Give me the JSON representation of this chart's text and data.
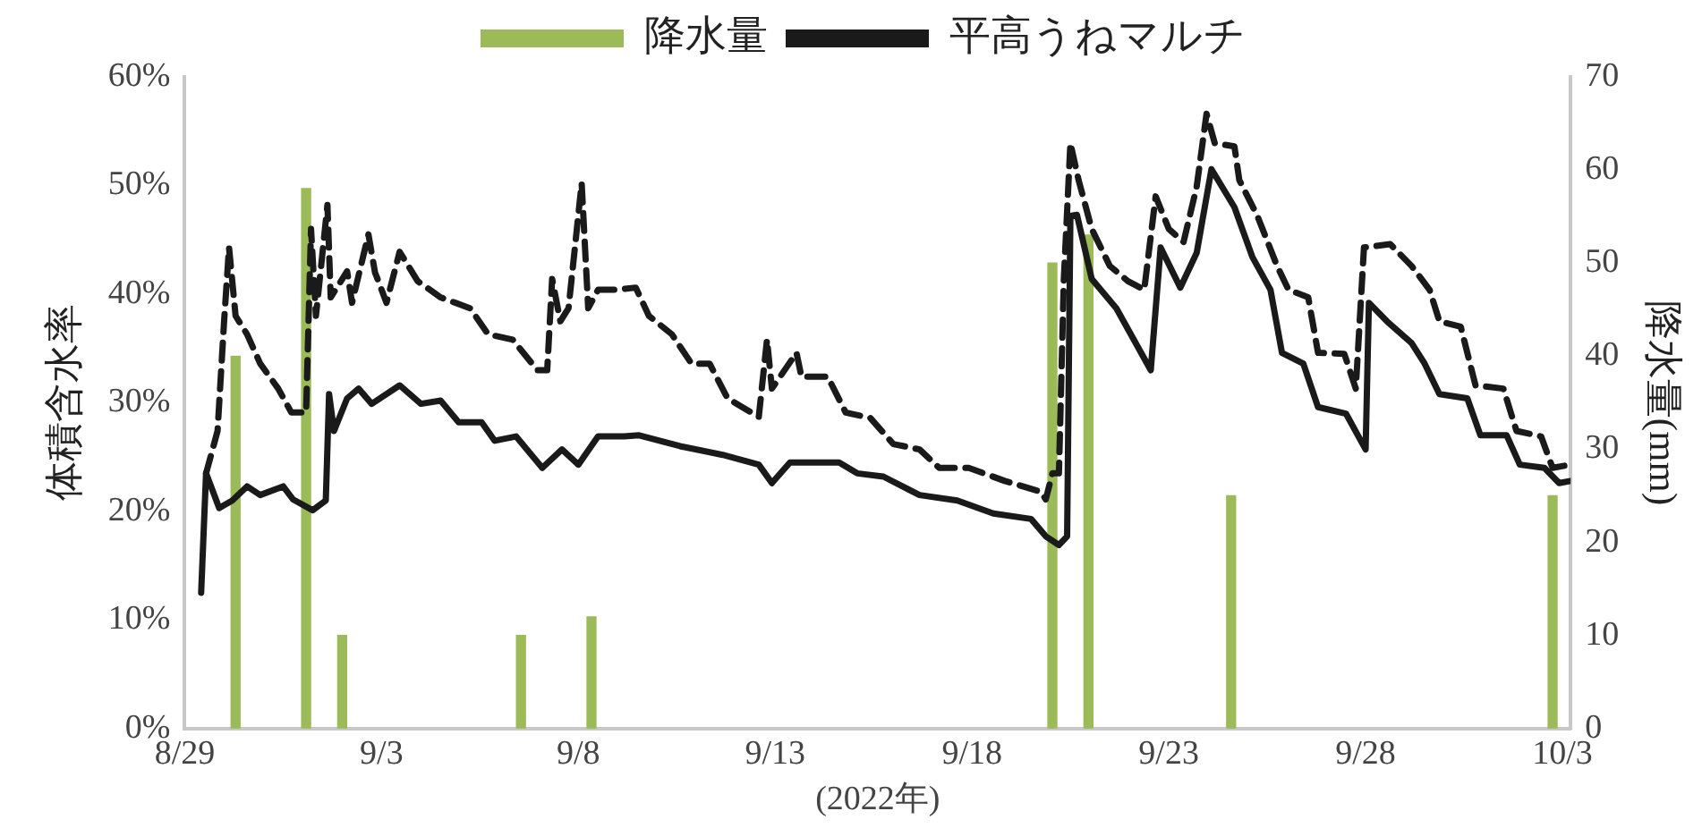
{
  "chart_data": {
    "type": "line",
    "xlabel": "(2022年)",
    "ylabel": "体積含水率",
    "y2label": "降水量(mm)",
    "legend": "top",
    "grid": false,
    "marker": "none",
    "xlim": [
      "2022-08-29",
      "2022-10-03T05:00"
    ],
    "xticks": [
      {
        "value": "2022-08-29",
        "label": "8/29"
      },
      {
        "value": "2022-09-03",
        "label": "9/3"
      },
      {
        "value": "2022-09-08",
        "label": "9/8"
      },
      {
        "value": "2022-09-13",
        "label": "9/13"
      },
      {
        "value": "2022-09-18",
        "label": "9/18"
      },
      {
        "value": "2022-09-23",
        "label": "9/23"
      },
      {
        "value": "2022-09-28",
        "label": "9/28"
      },
      {
        "value": "2022-10-03",
        "label": "10/3"
      }
    ],
    "ylim": [
      0,
      60
    ],
    "yticks": [
      {
        "value": 0,
        "label": "0%"
      },
      {
        "value": 10,
        "label": "10%"
      },
      {
        "value": 20,
        "label": "20%"
      },
      {
        "value": 30,
        "label": "30%"
      },
      {
        "value": 40,
        "label": "40%"
      },
      {
        "value": 50,
        "label": "50%"
      },
      {
        "value": 60,
        "label": "60%"
      }
    ],
    "y2lim": [
      0,
      70
    ],
    "y2ticks": [
      0,
      10,
      20,
      30,
      40,
      50,
      60,
      70
    ],
    "series": [
      {
        "name": "降水量",
        "type": "bar",
        "axis": "y2",
        "color": "#9bbb59",
        "x": [
          "2022-08-30T07:00",
          "2022-09-01T02:00",
          "2022-09-02T00:00",
          "2022-09-06T13:00",
          "2022-09-08T08:00",
          "2022-09-20T01:00",
          "2022-09-20T23:00",
          "2022-09-24T14:00",
          "2022-10-02T18:00"
        ],
        "values": [
          40,
          58,
          10,
          10,
          12,
          50,
          53,
          25,
          25
        ]
      },
      {
        "name": "平高うねマルチ",
        "line_style": "solid",
        "color": "#1a1a1a",
        "x": [
          "2022-08-29T10:00",
          "2022-08-29T13:00",
          "2022-08-29T21:00",
          "2022-08-30T05:00",
          "2022-08-30T14:00",
          "2022-08-30T22:00",
          "2022-08-31T12:00",
          "2022-08-31T18:00",
          "2022-09-01T06:00",
          "2022-09-01T14:00",
          "2022-09-01T16:00",
          "2022-09-01T19:00",
          "2022-09-02T03:00",
          "2022-09-02T10:00",
          "2022-09-02T18:00",
          "2022-09-03T11:00",
          "2022-09-04T00:00",
          "2022-09-04T12:00",
          "2022-09-04T23:00",
          "2022-09-05T13:00",
          "2022-09-05T21:00",
          "2022-09-06T10:00",
          "2022-09-07T02:00",
          "2022-09-07T14:00",
          "2022-09-08T00:00",
          "2022-09-08T12:00",
          "2022-09-09T04:00",
          "2022-09-09T13:00",
          "2022-09-10T14:00",
          "2022-09-11T16:00",
          "2022-09-12T14:00",
          "2022-09-12T22:00",
          "2022-09-13T09:00",
          "2022-09-14T15:00",
          "2022-09-15T02:00",
          "2022-09-15T18:00",
          "2022-09-16T16:00",
          "2022-09-17T15:00",
          "2022-09-18T13:00",
          "2022-09-19T12:00",
          "2022-09-19T21:00",
          "2022-09-20T05:00",
          "2022-09-20T10:00",
          "2022-09-20T12:00",
          "2022-09-20T16:00",
          "2022-09-21T01:00",
          "2022-09-21T16:00",
          "2022-09-22T13:00",
          "2022-09-22T19:00",
          "2022-09-23T07:00",
          "2022-09-23T17:00",
          "2022-09-24T02:00",
          "2022-09-24T16:00",
          "2022-09-25T03:00",
          "2022-09-25T14:00",
          "2022-09-25T21:00",
          "2022-09-26T10:00",
          "2022-09-26T19:00",
          "2022-09-27T12:00",
          "2022-09-28T00:00",
          "2022-09-28T02:00",
          "2022-09-28T13:00",
          "2022-09-29T04:00",
          "2022-09-29T12:00",
          "2022-09-29T21:00",
          "2022-09-30T14:00",
          "2022-09-30T22:00",
          "2022-10-01T14:00",
          "2022-10-01T22:00",
          "2022-10-02T13:00",
          "2022-10-02T22:00",
          "2022-10-03T05:00"
        ],
        "values": [
          12.5,
          23.5,
          20.3,
          21,
          22.3,
          21.5,
          22.3,
          21.1,
          20.1,
          21,
          30.8,
          27.4,
          30.4,
          31.3,
          29.9,
          31.6,
          29.9,
          30.2,
          28.2,
          28.2,
          26.5,
          26.9,
          24,
          25.7,
          24.3,
          26.9,
          26.9,
          27,
          26,
          25.2,
          24.3,
          22.6,
          24.5,
          24.5,
          23.5,
          23.2,
          21.5,
          21,
          19.8,
          19.3,
          17.7,
          16.9,
          17.7,
          47.2,
          47.3,
          41.4,
          38.7,
          33,
          44.3,
          40.6,
          43.8,
          51.5,
          48,
          43.4,
          40.4,
          34.6,
          33.6,
          29.6,
          29,
          25.7,
          39.2,
          37.5,
          35.5,
          33.6,
          30.8,
          30.4,
          27,
          27,
          24.3,
          24,
          22.6,
          22.8
        ]
      },
      {
        "line_style": "dashed",
        "color": "#1a1a1a",
        "x": [
          "2022-08-29T13:00",
          "2022-08-29T20:00",
          "2022-08-30T00:00",
          "2022-08-30T03:00",
          "2022-08-30T07:00",
          "2022-08-30T14:00",
          "2022-08-30T22:00",
          "2022-08-31T09:00",
          "2022-08-31T17:00",
          "2022-09-01T02:00",
          "2022-09-01T05:00",
          "2022-09-01T08:00",
          "2022-09-01T15:00",
          "2022-09-01T17:00",
          "2022-09-02T03:00",
          "2022-09-02T06:00",
          "2022-09-02T16:00",
          "2022-09-02T20:00",
          "2022-09-03T03:00",
          "2022-09-03T11:00",
          "2022-09-03T22:00",
          "2022-09-04T12:00",
          "2022-09-05T06:00",
          "2022-09-05T17:00",
          "2022-09-06T08:00",
          "2022-09-06T23:00",
          "2022-09-07T05:00",
          "2022-09-07T08:00",
          "2022-09-07T13:00",
          "2022-09-07T18:00",
          "2022-09-08T02:00",
          "2022-09-08T06:00",
          "2022-09-08T12:00",
          "2022-09-08T23:00",
          "2022-09-09T11:00",
          "2022-09-09T19:00",
          "2022-09-10T09:00",
          "2022-09-10T21:00",
          "2022-09-11T08:00",
          "2022-09-11T19:00",
          "2022-09-12T14:00",
          "2022-09-12T19:00",
          "2022-09-12T22:00",
          "2022-09-13T13:00",
          "2022-09-13T16:00",
          "2022-09-14T08:00",
          "2022-09-14T19:00",
          "2022-09-15T10:00",
          "2022-09-16T00:00",
          "2022-09-16T16:00",
          "2022-09-17T04:00",
          "2022-09-17T22:00",
          "2022-09-18T20:00",
          "2022-09-19T18:00",
          "2022-09-19T21:00",
          "2022-09-20T01:00",
          "2022-09-20T05:00",
          "2022-09-20T08:00",
          "2022-09-20T12:00",
          "2022-09-20T17:00",
          "2022-09-21T01:00",
          "2022-09-21T12:00",
          "2022-09-21T23:00",
          "2022-09-22T09:00",
          "2022-09-22T16:00",
          "2022-09-23T00:00",
          "2022-09-23T09:00",
          "2022-09-23T17:00",
          "2022-09-23T23:00",
          "2022-09-24T04:00",
          "2022-09-24T16:00",
          "2022-09-24T19:00",
          "2022-09-25T06:00",
          "2022-09-25T18:00",
          "2022-09-26T01:00",
          "2022-09-26T13:00",
          "2022-09-26T19:00",
          "2022-09-27T11:00",
          "2022-09-27T18:00",
          "2022-09-27T23:00",
          "2022-09-28T15:00",
          "2022-09-29T04:00",
          "2022-09-29T15:00",
          "2022-09-29T21:00",
          "2022-09-30T10:00",
          "2022-09-30T19:00",
          "2022-10-01T12:00",
          "2022-10-01T20:00",
          "2022-10-02T11:00",
          "2022-10-02T18:00",
          "2022-10-03T05:00"
        ],
        "values": [
          23.5,
          27.4,
          37.5,
          44.3,
          38,
          36.3,
          33.6,
          31.3,
          29.1,
          29.1,
          46,
          38,
          48.2,
          39.7,
          42.1,
          39.2,
          45.5,
          42,
          39.2,
          43.9,
          41.2,
          39.7,
          38.7,
          36.3,
          35.8,
          33,
          33,
          41.4,
          37.5,
          38.7,
          50.2,
          38.7,
          40.4,
          40.4,
          40.6,
          38,
          36.3,
          33.6,
          33.6,
          30.4,
          28.7,
          35.8,
          31.3,
          34.6,
          32.4,
          32.4,
          29.1,
          28.6,
          26.2,
          25.7,
          24,
          24,
          22.8,
          21.8,
          21.1,
          23.5,
          23.5,
          41.4,
          53.9,
          50.5,
          46,
          42.6,
          41.2,
          40.4,
          49,
          46,
          44.8,
          49.9,
          56.6,
          53.9,
          53.6,
          50.5,
          47.2,
          42.6,
          40.4,
          39.7,
          34.6,
          34.5,
          31.3,
          44.3,
          44.6,
          42.6,
          40.4,
          37.5,
          37,
          31.6,
          31.3,
          27.4,
          26.9,
          24,
          24.3
        ]
      }
    ]
  }
}
